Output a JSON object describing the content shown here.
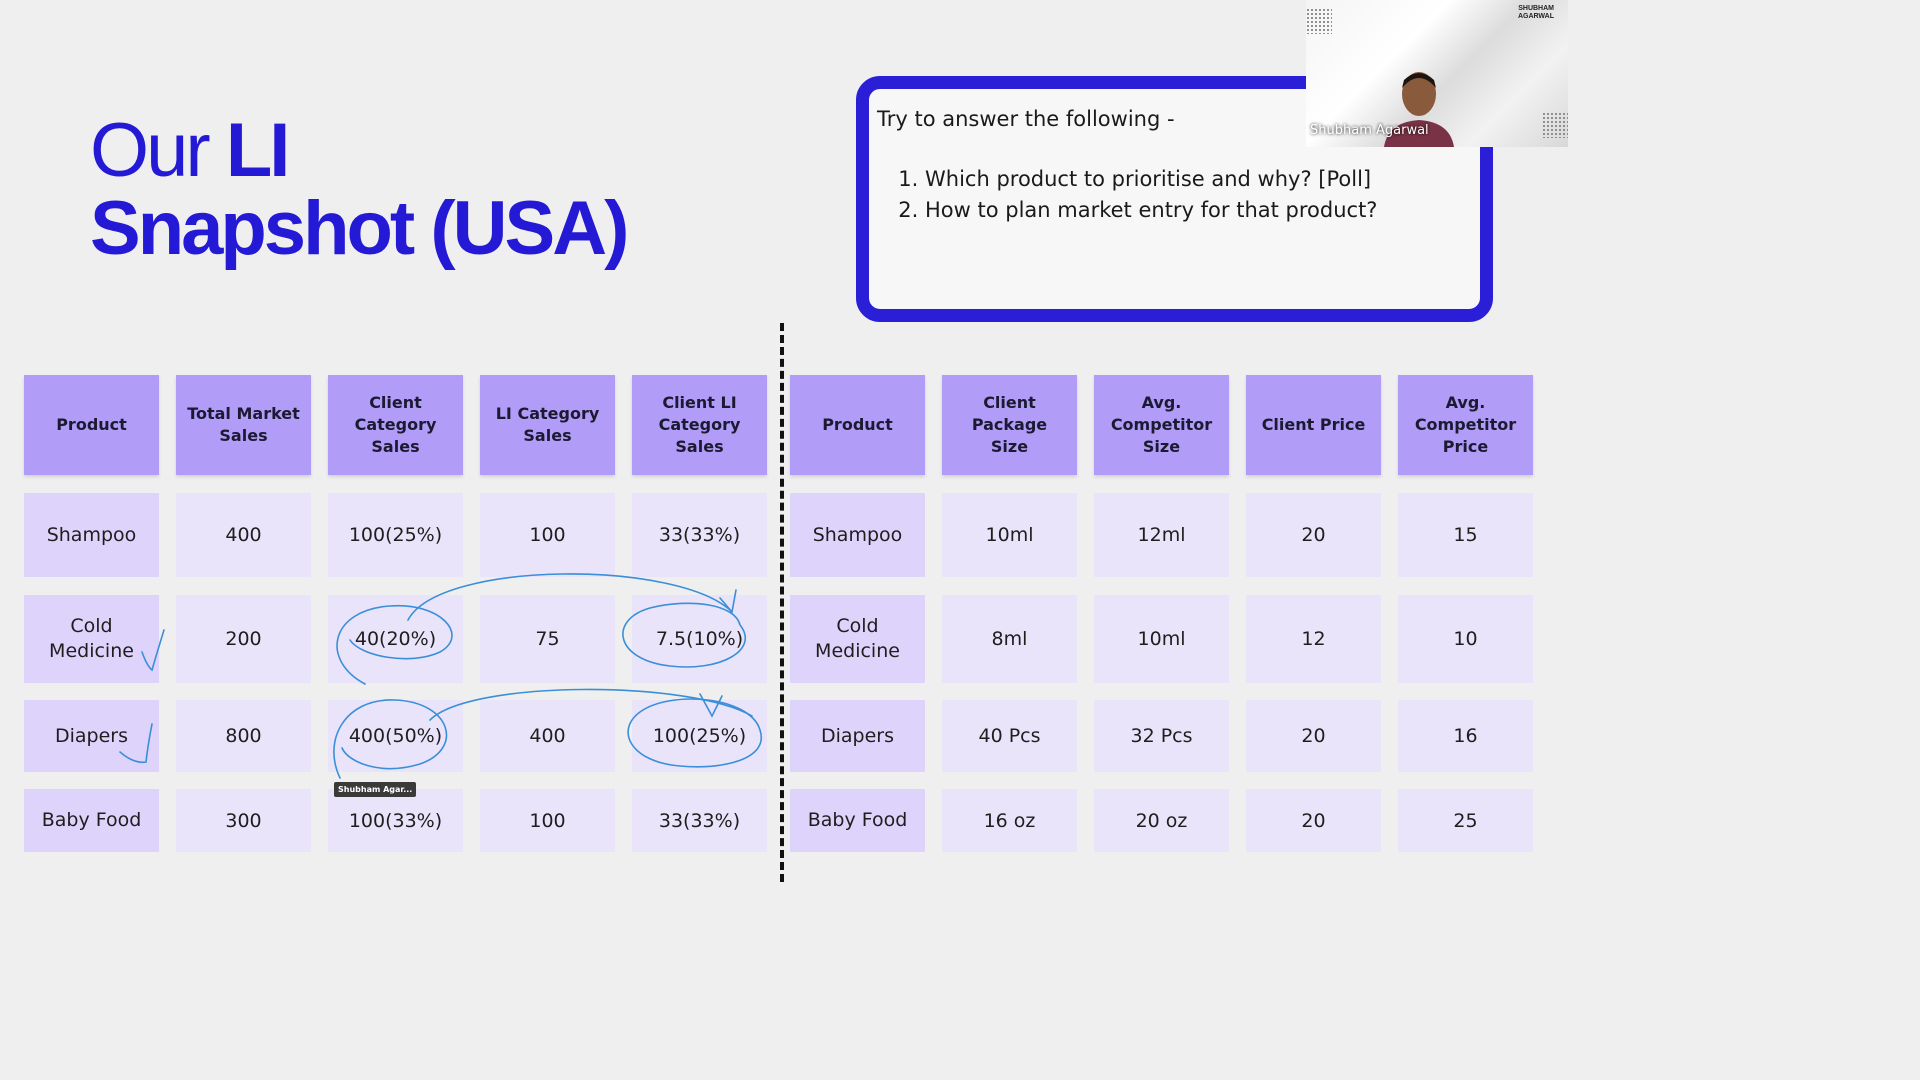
{
  "slide": {
    "title_light": "Our ",
    "title_bold_1": "LI",
    "title_bold_2": "Snapshot (USA)",
    "prompt_intro": "Try to answer the following -",
    "questions": [
      "Which product to prioritise and why? [Poll]",
      "How to plan market entry for that product?"
    ]
  },
  "table_left": {
    "headers": [
      "Product",
      "Total Market Sales",
      "Client Category Sales",
      "LI Category Sales",
      "Client LI Category Sales"
    ],
    "rows": [
      [
        "Shampoo",
        "400",
        "100(25%)",
        "100",
        "33(33%)"
      ],
      [
        "Cold Medicine",
        "200",
        "40(20%)",
        "75",
        "7.5(10%)"
      ],
      [
        "Diapers",
        "800",
        "400(50%)",
        "400",
        "100(25%)"
      ],
      [
        "Baby Food",
        "300",
        "100(33%)",
        "100",
        "33(33%)"
      ]
    ]
  },
  "table_right": {
    "headers": [
      "Product",
      "Client Package Size",
      "Avg. Competitor Size",
      "Client Price",
      "Avg. Competitor Price"
    ],
    "rows": [
      [
        "Shampoo",
        "10ml",
        "12ml",
        "20",
        "15"
      ],
      [
        "Cold Medicine",
        "8ml",
        "10ml",
        "12",
        "10"
      ],
      [
        "Diapers",
        "40 Pcs",
        "32 Pcs",
        "20",
        "16"
      ],
      [
        "Baby Food",
        "16 oz",
        "20 oz",
        "20",
        "25"
      ]
    ]
  },
  "webcam": {
    "presenter_name": "Shubham Agarwal",
    "brand_line1": "SHUBHAM",
    "brand_line2": "AGARWAL"
  },
  "annotation_tag": "Shubham Agar...",
  "colors": {
    "title": "#2419d4",
    "header_bg": "#b19cf7",
    "product_bg": "#ded3fb",
    "value_bg": "#eae4fb",
    "ink": "#3a8fd8"
  }
}
